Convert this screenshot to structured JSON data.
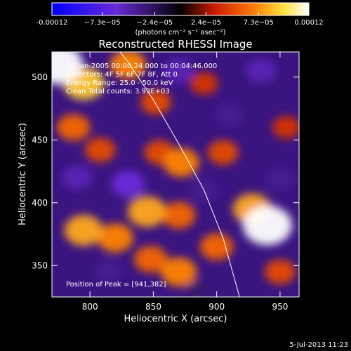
{
  "colorbar": {
    "tick_labels": [
      "-0.00012",
      "−7.3e−05",
      "−2.4e−05",
      "2.4e−05",
      "7.3e−05",
      "0.00012"
    ],
    "tick_values": [
      -0.00012,
      -7.3e-05,
      -2.4e-05,
      2.4e-05,
      7.3e-05,
      0.00012
    ],
    "range": [
      -0.00012,
      0.00012
    ],
    "units": "(photons cm⁻² s⁻¹ asec⁻²)"
  },
  "chart_data": {
    "type": "heatmap",
    "title": "Reconstructed RHESSI Image",
    "xlabel": "Heliocentric X (arcsec)",
    "ylabel": "Heliocentric Y (arcsec)",
    "xlim": [
      770,
      965
    ],
    "ylim": [
      325,
      520
    ],
    "x_ticks": [
      800,
      850,
      900,
      950
    ],
    "y_ticks": [
      350,
      400,
      450,
      500
    ],
    "x_tick_labels": [
      "800",
      "850",
      "900",
      "950"
    ],
    "y_tick_labels": [
      "350",
      "400",
      "450",
      "500"
    ],
    "annotations": [
      "20-Jan-2005 00:00:24.000 to 00:04:46.000",
      "Detectors: 4F 5F 6F 7F 8F, Att 0",
      "Energy Range: 25.0 - 50.0 keV",
      "Clean    Total counts: 3.93E+03"
    ],
    "peak_label": "Position of Peak = [941,382]",
    "peak": [
      941,
      382
    ],
    "sources": [
      {
        "x": 775,
        "y": 510,
        "value": 0.00012
      },
      {
        "x": 795,
        "y": 495,
        "value": 9e-05
      },
      {
        "x": 830,
        "y": 510,
        "value": 7e-05
      },
      {
        "x": 940,
        "y": 382,
        "value": 0.00012
      },
      {
        "x": 928,
        "y": 395,
        "value": 8e-05
      },
      {
        "x": 872,
        "y": 432,
        "value": 7e-05
      },
      {
        "x": 855,
        "y": 440,
        "value": 5e-05
      },
      {
        "x": 905,
        "y": 440,
        "value": 5e-05
      },
      {
        "x": 845,
        "y": 393,
        "value": 8e-05
      },
      {
        "x": 870,
        "y": 390,
        "value": 6e-05
      },
      {
        "x": 795,
        "y": 378,
        "value": 8e-05
      },
      {
        "x": 820,
        "y": 372,
        "value": 7e-05
      },
      {
        "x": 848,
        "y": 355,
        "value": 6e-05
      },
      {
        "x": 870,
        "y": 345,
        "value": 7e-05
      },
      {
        "x": 787,
        "y": 460,
        "value": 6e-05
      },
      {
        "x": 808,
        "y": 442,
        "value": 5e-05
      },
      {
        "x": 852,
        "y": 480,
        "value": 5e-05
      },
      {
        "x": 900,
        "y": 365,
        "value": 6e-05
      },
      {
        "x": 950,
        "y": 345,
        "value": 5e-05
      },
      {
        "x": 890,
        "y": 495,
        "value": 4e-05
      },
      {
        "x": 955,
        "y": 460,
        "value": 4e-05
      },
      {
        "x": 935,
        "y": 505,
        "value": -5e-05
      },
      {
        "x": 830,
        "y": 415,
        "value": -6e-05
      },
      {
        "x": 890,
        "y": 410,
        "value": -4e-05
      },
      {
        "x": 790,
        "y": 420,
        "value": -5e-05
      },
      {
        "x": 910,
        "y": 470,
        "value": -4e-05
      },
      {
        "x": 815,
        "y": 345,
        "value": -4e-05
      },
      {
        "x": 870,
        "y": 505,
        "value": -5e-05
      },
      {
        "x": 950,
        "y": 420,
        "value": -4e-05
      },
      {
        "x": 885,
        "y": 330,
        "value": -3e-05
      }
    ],
    "limb_curve": {
      "x": [
        812,
        830,
        850,
        870,
        890,
        905,
        918
      ],
      "y": [
        535,
        512,
        482,
        447,
        410,
        372,
        325
      ]
    }
  },
  "footer": {
    "timestamp": "5-Jul-2013 11:23"
  }
}
